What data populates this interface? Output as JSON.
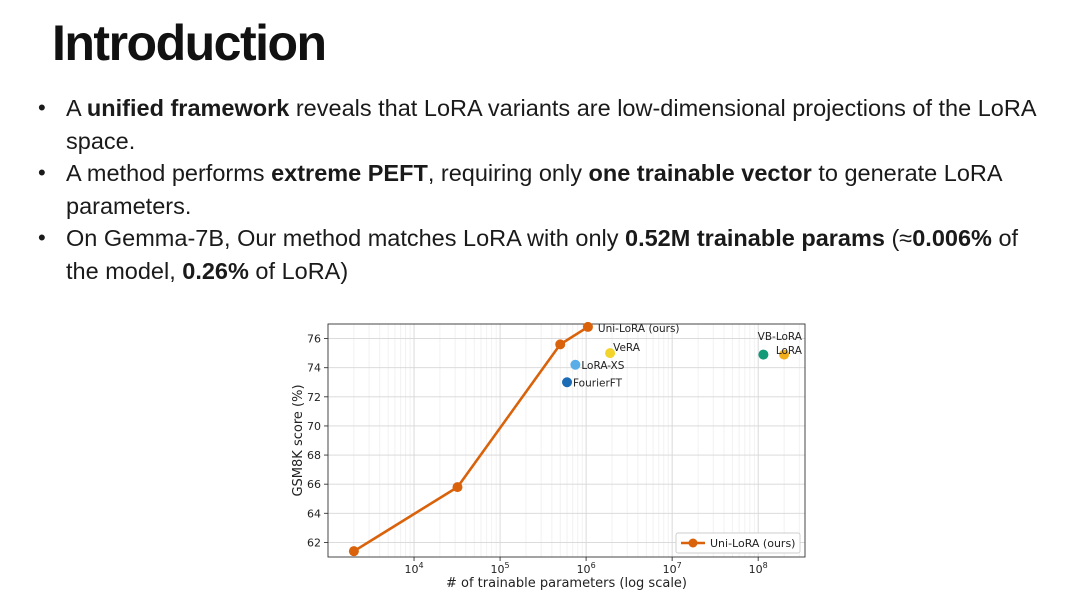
{
  "slide": {
    "title": "Introduction",
    "bullets": [
      {
        "runs": [
          {
            "text": "A ",
            "bold": false
          },
          {
            "text": "unified framework",
            "bold": true
          },
          {
            "text": " reveals that LoRA variants are low-dimensional projections of the  LoRA space.",
            "bold": false
          }
        ]
      },
      {
        "runs": [
          {
            "text": "A method performs ",
            "bold": false
          },
          {
            "text": "extreme PEFT",
            "bold": true
          },
          {
            "text": ", requiring only ",
            "bold": false
          },
          {
            "text": "one trainable vector",
            "bold": true
          },
          {
            "text": " to generate LoRA parameters.",
            "bold": false
          }
        ]
      },
      {
        "runs": [
          {
            "text": "On Gemma-7B, Our method matches LoRA with only ",
            "bold": false
          },
          {
            "text": "0.52M trainable params",
            "bold": true
          },
          {
            "text": " (≈",
            "bold": false
          },
          {
            "text": "0.006%",
            "bold": true
          },
          {
            "text": " of the model, ",
            "bold": false
          },
          {
            "text": "0.26%",
            "bold": true
          },
          {
            "text": " of LoRA)",
            "bold": false
          }
        ]
      }
    ]
  },
  "chart_data": {
    "type": "scatter",
    "xlabel": "# of trainable parameters (log scale)",
    "ylabel": "GSM8K score (%)",
    "xscale": "log",
    "xlim": [
      1000,
      350000000
    ],
    "ylim": [
      61,
      77
    ],
    "xticks": [
      10000,
      100000,
      1000000,
      10000000,
      100000000
    ],
    "xtick_labels": [
      {
        "base": "10",
        "exp": "4"
      },
      {
        "base": "10",
        "exp": "5"
      },
      {
        "base": "10",
        "exp": "6"
      },
      {
        "base": "10",
        "exp": "7"
      },
      {
        "base": "10",
        "exp": "8"
      }
    ],
    "yticks": [
      62,
      64,
      66,
      68,
      70,
      72,
      74,
      76
    ],
    "grid": true,
    "legend": {
      "position": "bottom-right",
      "label": "Uni-LoRA (ours)"
    },
    "series": [
      {
        "name": "Uni-LoRA (ours)",
        "style": "line-marker",
        "color": "#d9620a",
        "points": [
          {
            "x": 2000,
            "y": 61.4
          },
          {
            "x": 32000,
            "y": 65.8
          },
          {
            "x": 500000,
            "y": 75.6
          },
          {
            "x": 1050000,
            "y": 76.8
          }
        ]
      }
    ],
    "points": [
      {
        "label": "VeRA",
        "x": 1900000,
        "y": 75.0,
        "color": "#f2d42a"
      },
      {
        "label": "LoRA-XS",
        "x": 750000,
        "y": 74.2,
        "color": "#5aaee8"
      },
      {
        "label": "FourierFT",
        "x": 600000,
        "y": 73.0,
        "color": "#1b6cb5"
      },
      {
        "label": "VB-LoRA",
        "x": 115000000,
        "y": 74.9,
        "color": "#139a78"
      },
      {
        "label": "LoRA",
        "x": 200000000,
        "y": 74.9,
        "color": "#f2ae1a"
      }
    ],
    "point_labels": [
      {
        "text": "Uni-LoRA (ours)"
      },
      {
        "text": "VeRA"
      },
      {
        "text": "LoRA-XS"
      },
      {
        "text": "FourierFT"
      },
      {
        "text": "VB-LoRA"
      },
      {
        "text": "LoRA"
      }
    ]
  }
}
